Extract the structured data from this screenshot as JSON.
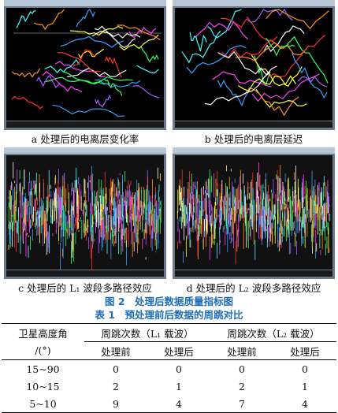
{
  "figure": {
    "panels": [
      {
        "caption": "a 处理后的电离层变化率"
      },
      {
        "caption": "b 处理后的电离层延迟"
      },
      {
        "caption": "c 处理后的 L₁ 波段多路径效应"
      },
      {
        "caption": "d 处理后的 L₂ 波段多路径效应"
      }
    ],
    "title": "图 2　处理后数据质量指标图"
  },
  "table": {
    "title": "表 1　预处理前后数据的周跳对比",
    "header": [
      "卫星高度角",
      "周跳次数（L₁ 载波）",
      "周跳次数（L₂ 载波）"
    ],
    "unit": "/(°)",
    "subheader": [
      "处理前",
      "处理后",
      "处理前",
      "处理后"
    ],
    "rows": [
      [
        "15~90",
        "0",
        "0",
        "0",
        "0"
      ],
      [
        "10~15",
        "2",
        "1",
        "2",
        "1"
      ],
      [
        "5~10",
        "9",
        "4",
        "7",
        "4"
      ]
    ]
  }
}
